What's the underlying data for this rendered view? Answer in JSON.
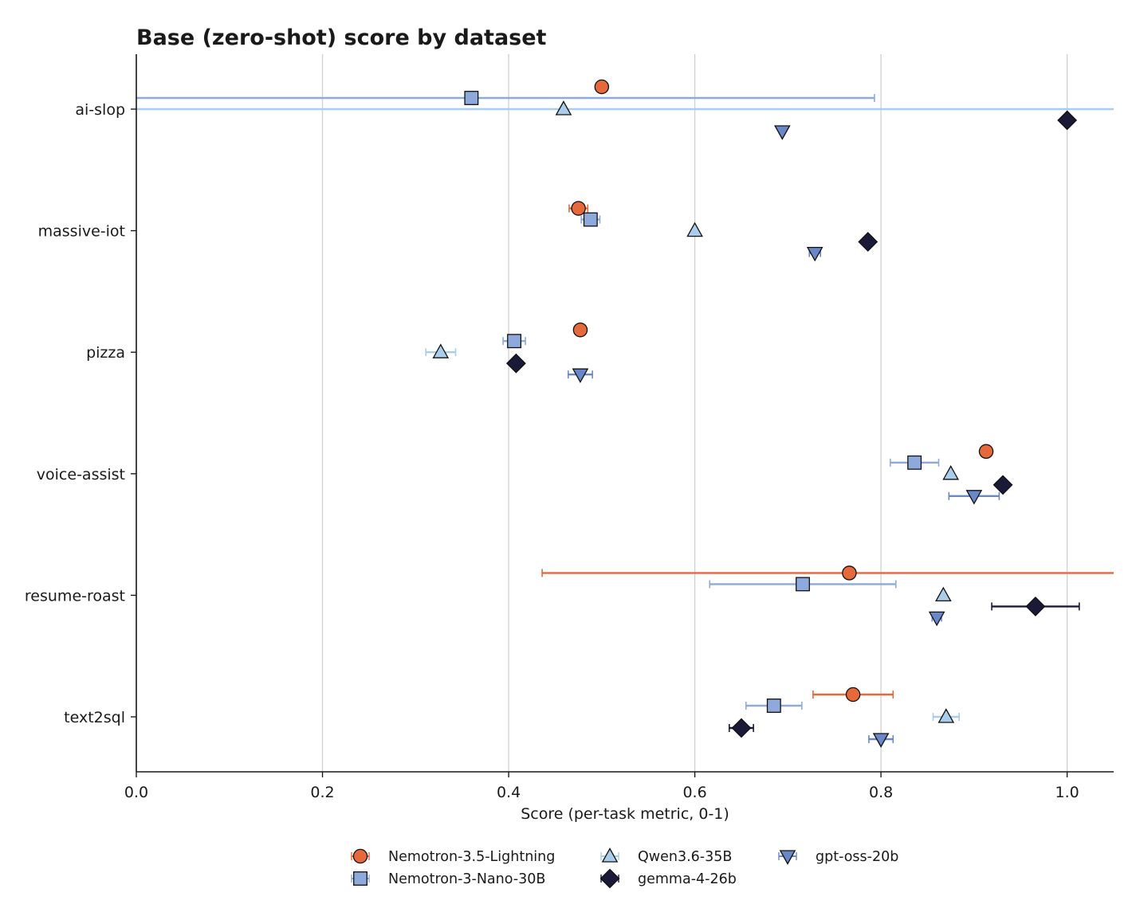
{
  "chart_data": {
    "type": "scatter",
    "orientation": "horizontal-dot-plot-with-error-bars",
    "title": "Base (zero-shot) score by dataset",
    "xlabel": "Score (per-task metric, 0-1)",
    "ylabel": "",
    "xlim": [
      0.0,
      1.05
    ],
    "xticks": [
      "0.0",
      "0.2",
      "0.4",
      "0.6",
      "0.8",
      "1.0"
    ],
    "grid": "vertical",
    "legend_position": "bottom-center",
    "categories": [
      "ai-slop",
      "massive-iot",
      "pizza",
      "voice-assist",
      "resume-roast",
      "text2sql"
    ],
    "series": [
      {
        "name": "Nemotron-3.5-Lightning",
        "marker": "circle",
        "color": "#E5693B",
        "ecolor": "#E5693B",
        "values": [
          0.5,
          0.475,
          0.477,
          0.913,
          0.766,
          0.77
        ],
        "errors": [
          0,
          0.01,
          0,
          0,
          0.33,
          0.043
        ]
      },
      {
        "name": "Nemotron-3-Nano-30B",
        "marker": "square",
        "color": "#8EA9DC",
        "ecolor": "#8EA9DC",
        "values": [
          0.36,
          0.488,
          0.406,
          0.836,
          0.716,
          0.685
        ],
        "errors": [
          0.433,
          0.01,
          0.012,
          0.026,
          0.1,
          0.03
        ]
      },
      {
        "name": "Qwen3.6-35B",
        "marker": "triangle-up",
        "color": "#A9CDEB",
        "ecolor": "#A9CDEB",
        "values": [
          0.459,
          0.6,
          0.327,
          0.875,
          0.867,
          0.87
        ],
        "errors": [
          0.65,
          0,
          0.016,
          0,
          0,
          0.014
        ]
      },
      {
        "name": "gemma-4-26b",
        "marker": "diamond",
        "color": "#1A1A38",
        "ecolor": "#1A1A38",
        "values": [
          1.0,
          0.786,
          0.408,
          0.931,
          0.966,
          0.65
        ],
        "errors": [
          0,
          0,
          0,
          0,
          0.047,
          0.013
        ]
      },
      {
        "name": "gpt-oss-20b",
        "marker": "triangle-down",
        "color": "#6A88C8",
        "ecolor": "#6A88C8",
        "values": [
          0.694,
          0.729,
          0.477,
          0.9,
          0.86,
          0.8
        ],
        "errors": [
          0,
          0.006,
          0.013,
          0.027,
          0.005,
          0.013
        ]
      }
    ]
  }
}
